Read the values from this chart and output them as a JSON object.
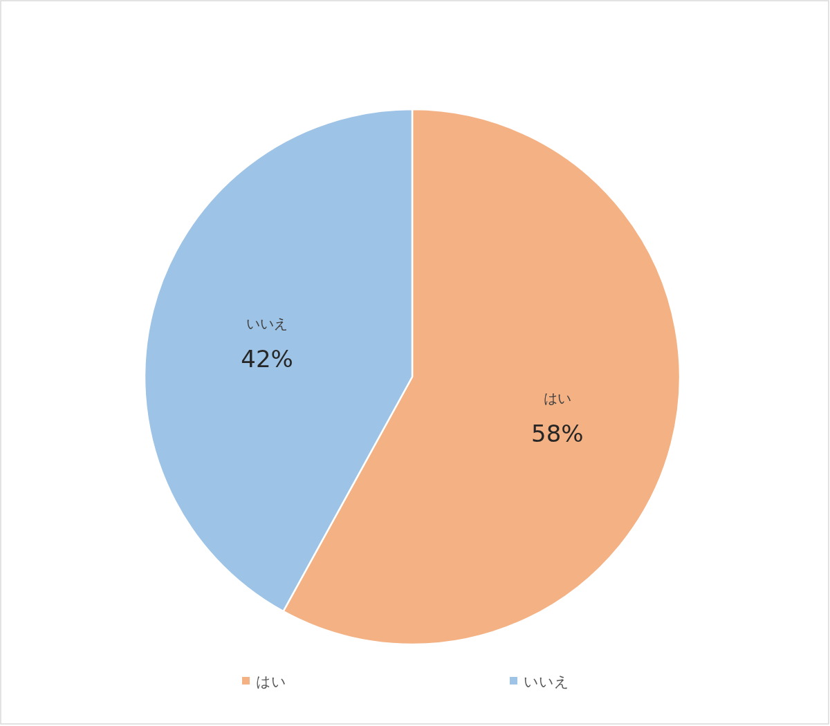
{
  "chart_data": {
    "type": "pie",
    "categories": [
      "はい",
      "いいえ"
    ],
    "values": [
      58,
      42
    ],
    "colors": [
      "#f4b183",
      "#9dc3e6"
    ],
    "value_labels": [
      "58%",
      "42%"
    ],
    "legend": "bottom"
  }
}
